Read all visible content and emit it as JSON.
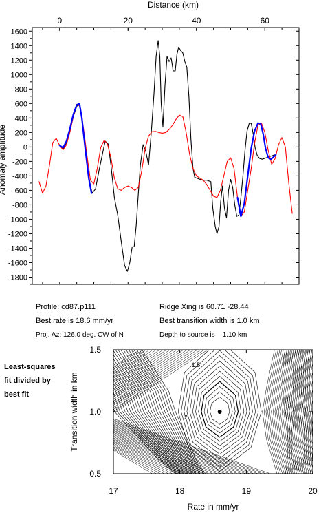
{
  "chart_data": [
    {
      "type": "line",
      "title": "",
      "xlabel": "Distance (km)",
      "ylabel": "Anomaly amplitude",
      "xlim": [
        -8,
        70
      ],
      "ylim": [
        -1900,
        1650
      ],
      "x_ticks": [
        0,
        20,
        40,
        60
      ],
      "y_ticks": [
        -1800,
        -1600,
        -1400,
        -1200,
        -1000,
        -800,
        -600,
        -400,
        -200,
        0,
        200,
        400,
        600,
        800,
        1000,
        1200,
        1400,
        1600
      ],
      "grid": false,
      "series": [
        {
          "color": "#000000",
          "x": [
            0,
            1,
            2,
            3,
            4,
            5,
            5.8,
            6.5,
            7.5,
            8.5,
            9.5,
            10.5,
            11.5,
            12.5,
            13.3,
            14.2,
            15,
            16,
            17,
            18,
            19,
            19.8,
            20.5,
            21.2,
            21.8,
            22.4,
            23,
            23.6,
            24.4,
            25.2,
            26,
            26.8,
            27.6,
            28.2,
            28.8,
            29.3,
            29.7,
            30.2,
            30.8,
            31.4,
            32,
            32.6,
            33.2,
            33.8,
            34.3,
            34.8,
            35.4,
            36,
            36.6,
            37.2,
            37.8,
            38.4,
            39,
            39.5,
            40,
            40.6,
            41.2,
            41.8,
            42.4,
            43,
            43.6,
            44.2,
            44.8,
            45.5,
            46,
            46.6,
            47.1,
            47.6,
            48.2,
            48.8,
            49.4,
            50,
            50.6,
            51.2,
            51.8,
            52.4,
            53,
            53.6,
            54.2,
            54.8,
            55.4,
            56,
            56.6,
            57.2,
            57.8,
            58.5,
            59.2,
            59.8,
            60.4,
            61,
            61.6,
            62.2,
            62.8,
            63.3
          ],
          "y": [
            30,
            -30,
            60,
            220,
            420,
            560,
            590,
            420,
            0,
            -420,
            -640,
            -580,
            -330,
            -100,
            80,
            40,
            -250,
            -700,
            -950,
            -1300,
            -1640,
            -1720,
            -1600,
            -1380,
            -1380,
            -1080,
            -650,
            -250,
            30,
            -60,
            -250,
            200,
            750,
            1250,
            1470,
            1250,
            600,
            280,
            850,
            1250,
            1180,
            1230,
            1050,
            1050,
            1280,
            1380,
            1330,
            1300,
            1180,
            1100,
            700,
            100,
            -300,
            -420,
            -430,
            -440,
            -450,
            -460,
            -460,
            -460,
            -470,
            -480,
            -850,
            -1100,
            -1200,
            -1100,
            -750,
            -540,
            -850,
            -980,
            -600,
            -450,
            -560,
            -800,
            -960,
            -940,
            -700,
            -400,
            -50,
            220,
            320,
            330,
            180,
            -20,
            -120,
            -160,
            -170,
            -160,
            -150,
            -140,
            -130,
            -120,
            -110,
            -110
          ]
        },
        {
          "color": "#ff0000",
          "x": [
            -6,
            -5,
            -4,
            -3,
            -2,
            -1,
            0,
            1,
            2,
            3,
            4,
            5,
            6,
            7,
            8,
            9,
            10,
            11,
            12,
            13,
            14,
            15,
            16,
            17,
            18,
            19,
            20,
            21,
            22,
            23,
            24,
            25,
            26,
            27,
            28,
            29,
            30,
            31,
            32,
            33,
            34,
            35,
            36,
            37,
            38,
            39,
            40,
            41,
            42,
            43,
            44,
            45,
            46,
            47,
            48,
            49,
            50,
            51,
            52,
            53,
            54,
            55,
            56,
            57,
            58,
            59,
            60,
            61,
            62,
            63,
            64,
            65,
            66,
            67,
            68
          ],
          "y": [
            -480,
            -640,
            -540,
            -260,
            60,
            120,
            20,
            -40,
            30,
            200,
            420,
            590,
            560,
            250,
            -120,
            -460,
            -510,
            -300,
            -10,
            90,
            40,
            -150,
            -430,
            -580,
            -600,
            -560,
            -540,
            -560,
            -600,
            -560,
            -330,
            -20,
            150,
            210,
            215,
            200,
            190,
            200,
            240,
            300,
            380,
            440,
            420,
            200,
            -100,
            -300,
            -400,
            -430,
            -460,
            -520,
            -600,
            -680,
            -700,
            -600,
            -400,
            -200,
            -150,
            -300,
            -700,
            -960,
            -900,
            -600,
            -300,
            50,
            300,
            330,
            200,
            -50,
            -240,
            -160,
            30,
            130,
            0,
            -500,
            -920
          ]
        },
        {
          "color": "#0000ff",
          "x": [
            0,
            1,
            2,
            3,
            4,
            5,
            5.8,
            6.5,
            7.5,
            8.5,
            9.3
          ],
          "y": [
            20,
            -10,
            80,
            250,
            450,
            580,
            600,
            400,
            -30,
            -430,
            -640
          ]
        },
        {
          "color": "#0000ff",
          "x": [
            52,
            53,
            54,
            55,
            56,
            57,
            58,
            58.8,
            59.5,
            60.2,
            61,
            61.8,
            62.5,
            63.2
          ],
          "y": [
            -700,
            -960,
            -780,
            -400,
            -20,
            220,
            330,
            320,
            180,
            -20,
            -150,
            -170,
            -140,
            -110
          ]
        }
      ]
    },
    {
      "type": "contour",
      "title": "",
      "xlabel": "Rate in mm/yr",
      "ylabel": "Transition width in km",
      "xlim": [
        17,
        20
      ],
      "ylim": [
        0.5,
        1.5
      ],
      "x_ticks": [
        17,
        18,
        19,
        20
      ],
      "y_ticks": [
        0.5,
        1.0,
        1.5
      ],
      "grid": false,
      "contour_labels": [
        {
          "text": "1.5",
          "x": 18.24,
          "y": 1.36
        },
        {
          "text": "2",
          "x": 18.09,
          "y": 0.94
        }
      ],
      "best_fit": {
        "x": 18.6,
        "y": 1.0
      }
    }
  ],
  "info": {
    "profile": "Profile: cd87.p111",
    "best_rate": "Best rate is 18.6 mm/yr",
    "proj_az": "Proj. Az: 126.0 deg. CW of N",
    "ridge_xing": "Ridge Xing is 60.71 -28.44",
    "best_transition": "Best transition width is 1.0 km",
    "depth": "Depth to source is    1.10 km"
  },
  "side_caption": [
    "Least-squares",
    "fit divided by",
    "best fit"
  ]
}
